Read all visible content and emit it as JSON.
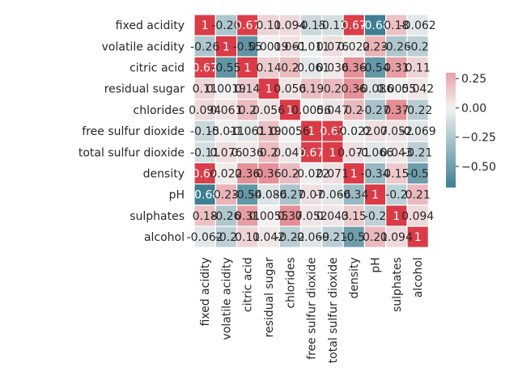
{
  "chart_data": {
    "type": "heatmap",
    "labels": [
      "fixed acidity",
      "volatile acidity",
      "citric acid",
      "residual sugar",
      "chlorides",
      "free sulfur dioxide",
      "total sulfur dioxide",
      "density",
      "pH",
      "sulphates",
      "alcohol"
    ],
    "matrix": [
      [
        1,
        -0.26,
        0.67,
        0.11,
        0.094,
        -0.15,
        -0.11,
        0.67,
        -0.68,
        0.18,
        -0.062
      ],
      [
        -0.26,
        1,
        -0.55,
        0.0019,
        0.061,
        -0.011,
        0.076,
        0.022,
        0.23,
        -0.26,
        -0.2
      ],
      [
        0.67,
        -0.55,
        1,
        0.14,
        0.2,
        -0.061,
        0.036,
        0.36,
        -0.54,
        0.31,
        0.11
      ],
      [
        0.11,
        0.0019,
        0.14,
        1,
        0.056,
        0.19,
        0.2,
        0.36,
        -0.086,
        0.0055,
        0.042
      ],
      [
        0.094,
        0.061,
        0.2,
        0.056,
        1,
        0.0056,
        0.047,
        0.2,
        -0.27,
        0.37,
        -0.22
      ],
      [
        -0.15,
        -0.011,
        -0.061,
        0.19,
        0.0056,
        1,
        0.67,
        -0.022,
        0.07,
        0.052,
        -0.069
      ],
      [
        -0.11,
        0.076,
        0.036,
        0.2,
        0.047,
        0.67,
        1,
        0.071,
        -0.066,
        0.043,
        -0.21
      ],
      [
        0.67,
        0.022,
        0.36,
        0.36,
        0.2,
        -0.022,
        0.071,
        1,
        -0.34,
        0.15,
        -0.5
      ],
      [
        -0.68,
        0.23,
        -0.54,
        -0.086,
        -0.27,
        0.07,
        -0.066,
        -0.34,
        1,
        -0.2,
        0.21
      ],
      [
        0.18,
        -0.26,
        0.31,
        0.0055,
        0.37,
        0.052,
        0.043,
        0.15,
        -0.2,
        1,
        0.094
      ],
      [
        -0.062,
        -0.2,
        0.11,
        0.042,
        -0.22,
        -0.069,
        -0.21,
        -0.5,
        0.21,
        0.094,
        1
      ]
    ],
    "value_range": [
      -0.68,
      0.3
    ],
    "colorbar_ticks": [
      0.25,
      0,
      -0.25,
      -0.5
    ],
    "colorbar_tick_labels": [
      "0.25",
      "0.00",
      "−0.25",
      "−0.50"
    ],
    "colors": {
      "negative": "#3f7f93",
      "center": "#f2f2f2",
      "positive": "#da3b46"
    },
    "grid_lines": "white",
    "colorbar_position": "right"
  }
}
